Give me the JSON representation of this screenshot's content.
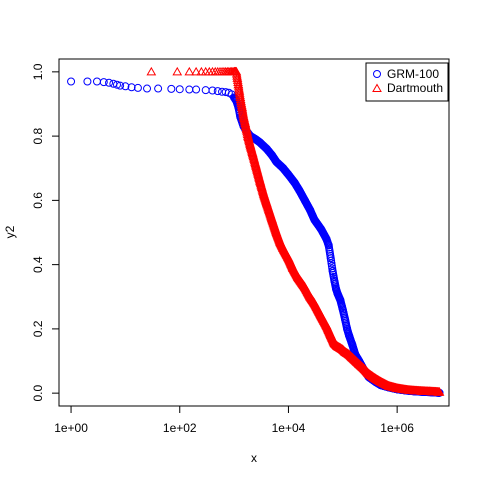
{
  "chart_data": {
    "type": "scatter",
    "title": "",
    "xlabel": "x",
    "ylabel": "y2",
    "x_scale": "log10",
    "xlim": [
      0.6,
      9000000
    ],
    "ylim": [
      -0.04,
      1.04
    ],
    "x_ticks": [
      1,
      100,
      10000,
      1000000
    ],
    "x_tick_labels": [
      "1e+00",
      "1e+02",
      "1e+04",
      "1e+06"
    ],
    "y_ticks": [
      0.0,
      0.2,
      0.4,
      0.6,
      0.8,
      1.0
    ],
    "y_tick_labels": [
      "0.0",
      "0.2",
      "0.4",
      "0.6",
      "0.8",
      "1.0"
    ],
    "grid": false,
    "legend_position": "top-right",
    "series": [
      {
        "name": "GRM-100",
        "marker": "circle",
        "color": "#0000ff",
        "x": [
          1,
          2,
          3,
          4,
          5,
          6,
          7,
          8,
          10,
          13,
          17,
          25,
          40,
          70,
          100,
          150,
          200,
          300,
          400,
          500,
          600,
          700,
          800,
          900,
          1000,
          1100,
          1200,
          1300,
          1500,
          1700,
          2000,
          2500,
          3000,
          4000,
          5000,
          6000,
          8000,
          10000,
          13000,
          16000,
          20000,
          25000,
          30000,
          40000,
          50000,
          55000,
          60000,
          65000,
          70000,
          75000,
          80000,
          90000,
          100000,
          110000,
          120000,
          130000,
          150000,
          170000,
          200000,
          250000,
          300000,
          400000,
          500000,
          700000,
          1000000,
          1500000,
          2000000,
          3000000,
          4000000,
          5000000,
          6000000
        ],
        "y": [
          0.97,
          0.97,
          0.97,
          0.968,
          0.966,
          0.963,
          0.96,
          0.957,
          0.955,
          0.952,
          0.95,
          0.948,
          0.948,
          0.947,
          0.946,
          0.945,
          0.945,
          0.943,
          0.942,
          0.94,
          0.938,
          0.937,
          0.935,
          0.93,
          0.92,
          0.91,
          0.89,
          0.86,
          0.83,
          0.815,
          0.8,
          0.79,
          0.78,
          0.76,
          0.74,
          0.72,
          0.7,
          0.68,
          0.655,
          0.63,
          0.6,
          0.57,
          0.54,
          0.51,
          0.48,
          0.46,
          0.42,
          0.38,
          0.35,
          0.325,
          0.31,
          0.29,
          0.26,
          0.23,
          0.2,
          0.18,
          0.15,
          0.12,
          0.1,
          0.07,
          0.05,
          0.035,
          0.025,
          0.018,
          0.012,
          0.008,
          0.006,
          0.004,
          0.003,
          0.002,
          0.001
        ]
      },
      {
        "name": "Dartmouth",
        "marker": "triangle",
        "color": "#ff0000",
        "x": [
          30,
          90,
          150,
          200,
          250,
          300,
          350,
          400,
          450,
          500,
          550,
          600,
          650,
          700,
          750,
          800,
          850,
          900,
          950,
          1000,
          1050,
          1100,
          1150,
          1200,
          1250,
          1300,
          1400,
          1500,
          1600,
          1700,
          1800,
          2000,
          2200,
          2500,
          3000,
          3500,
          4000,
          5000,
          6000,
          7000,
          8000,
          10000,
          12000,
          15000,
          20000,
          25000,
          30000,
          40000,
          50000,
          60000,
          70000,
          80000,
          90000,
          100000,
          110000,
          130000,
          150000,
          200000,
          250000,
          300000,
          400000,
          500000,
          700000,
          1000000,
          1500000,
          2000000,
          3000000,
          4000000,
          5000000,
          6000000
        ],
        "y": [
          1.0,
          1.0,
          1.0,
          1.0,
          1.0,
          1.0,
          1.0,
          1.0,
          1.0,
          1.0,
          1.0,
          1.0,
          1.0,
          1.0,
          1.0,
          1.0,
          1.0,
          1.0,
          1.0,
          1.0,
          1.0,
          1.0,
          0.98,
          0.96,
          0.94,
          0.92,
          0.89,
          0.86,
          0.84,
          0.82,
          0.8,
          0.77,
          0.745,
          0.71,
          0.66,
          0.62,
          0.59,
          0.54,
          0.5,
          0.47,
          0.45,
          0.42,
          0.39,
          0.36,
          0.33,
          0.3,
          0.28,
          0.24,
          0.21,
          0.18,
          0.155,
          0.145,
          0.14,
          0.135,
          0.128,
          0.12,
          0.11,
          0.09,
          0.075,
          0.06,
          0.045,
          0.035,
          0.022,
          0.015,
          0.01,
          0.008,
          0.006,
          0.005,
          0.004,
          0.003
        ]
      }
    ]
  }
}
